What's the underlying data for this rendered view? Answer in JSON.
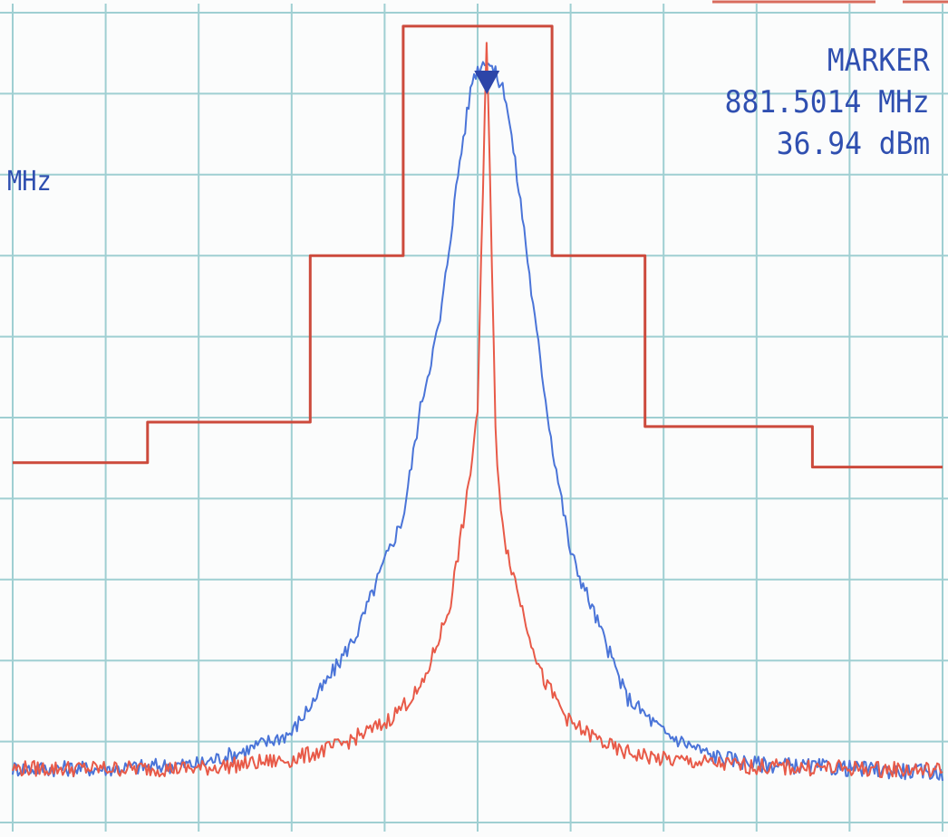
{
  "chart_data": {
    "type": "line",
    "grid": true,
    "grid_divisions": {
      "x": 10,
      "y": 10
    },
    "x_divisions_range": [
      0,
      10
    ],
    "y_divisions_range": [
      0,
      9
    ],
    "unit_label": "MHz",
    "marker": {
      "label": "MARKER",
      "frequency": "881.5014 MHz",
      "level": "36.94 dBm",
      "position_div": 5.1
    },
    "series": [
      {
        "name": "",
        "color": "#cc4a3c",
        "style": "spectrum-mask",
        "x": [
          0,
          1.45,
          1.45,
          3.2,
          3.2,
          4.2,
          4.2,
          5.8,
          5.8,
          6.8,
          6.8,
          8.6,
          8.6,
          10
        ],
        "y": [
          4.0,
          4.0,
          4.45,
          4.45,
          6.3,
          6.3,
          8.85,
          8.85,
          6.3,
          6.3,
          4.4,
          4.4,
          3.95,
          3.95
        ]
      },
      {
        "name": "",
        "color": "#4a74d8",
        "style": "spectrum-trace",
        "x": [
          0,
          1,
          2,
          2.5,
          3,
          3.4,
          3.7,
          4.0,
          4.2,
          4.4,
          4.6,
          4.8,
          4.95,
          5.1,
          5.3,
          5.5,
          5.6,
          5.8,
          6.0,
          6.3,
          6.6,
          7.0,
          7.5,
          8,
          9,
          10
        ],
        "y": [
          0.6,
          0.6,
          0.65,
          0.8,
          1.0,
          1.6,
          2.1,
          2.9,
          3.4,
          4.7,
          5.6,
          7.3,
          8.3,
          8.5,
          8.1,
          6.6,
          5.7,
          4.2,
          3.0,
          2.2,
          1.4,
          1.0,
          0.75,
          0.65,
          0.6,
          0.55
        ]
      },
      {
        "name": "",
        "color": "#e85a48",
        "style": "spectrum-trace",
        "x": [
          0,
          1,
          2,
          3,
          3.5,
          4.0,
          4.4,
          4.7,
          4.9,
          5.0,
          5.1,
          5.2,
          5.3,
          5.5,
          5.7,
          6.0,
          6.5,
          7,
          8,
          9,
          10
        ],
        "y": [
          0.6,
          0.6,
          0.6,
          0.7,
          0.85,
          1.1,
          1.5,
          2.4,
          3.7,
          4.6,
          8.8,
          4.0,
          3.1,
          2.3,
          1.6,
          1.1,
          0.8,
          0.7,
          0.62,
          0.6,
          0.58
        ]
      }
    ]
  }
}
